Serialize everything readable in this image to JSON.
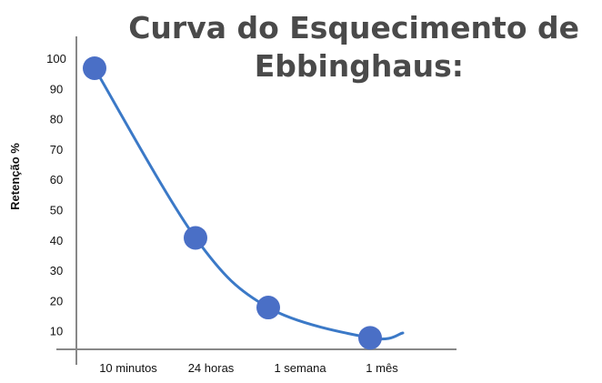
{
  "chart_data": {
    "type": "line",
    "title_lines": [
      "Curva do Esquecimento de",
      "Ebbinghaus:"
    ],
    "xlabel": "",
    "ylabel": "Retenção %",
    "categories": [
      "10 minutos",
      "24 horas",
      "1 semana",
      "1 mês"
    ],
    "x": [
      0,
      1,
      2,
      3
    ],
    "series": [
      {
        "values": [
          97,
          41,
          18,
          8
        ]
      }
    ],
    "yticks": [
      10,
      20,
      30,
      40,
      50,
      60,
      70,
      80,
      90,
      100
    ],
    "ylim": [
      0,
      100
    ],
    "grid": false,
    "legend": "none",
    "line_color": "#3b79c7",
    "marker_color": "#4a6fc6",
    "axis_color": "#888888"
  }
}
